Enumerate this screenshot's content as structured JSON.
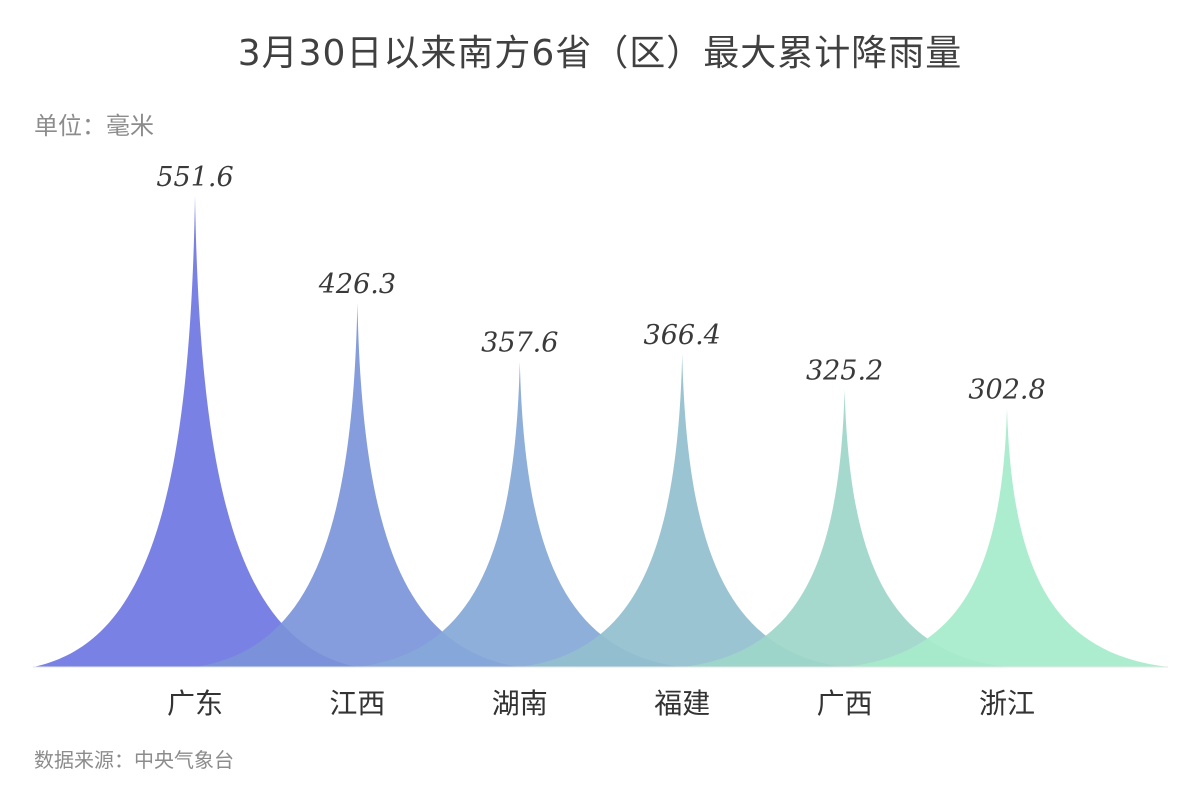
{
  "title": "3月30日以来南方6省（区）最大累计降雨量",
  "unit": "单位：毫米",
  "source": "数据来源：中央气象台",
  "colors": [
    "#6f76e2",
    "#7b94da",
    "#86a8d8",
    "#93bfcf",
    "#9ed6c9",
    "#a6eccb"
  ],
  "chart_data": {
    "type": "bar",
    "categories": [
      "广东",
      "江西",
      "湖南",
      "福建",
      "广西",
      "浙江"
    ],
    "values": [
      551.6,
      426.3,
      357.6,
      366.4,
      325.2,
      302.8
    ],
    "value_labels": [
      "551.6",
      "426.3",
      "357.6",
      "366.4",
      "325.2",
      "302.8"
    ],
    "title": "3月30日以来南方6省（区）最大累计降雨量",
    "ylabel": "单位：毫米",
    "ylim": [
      0,
      551.6
    ],
    "grid": false,
    "legend": "none"
  }
}
